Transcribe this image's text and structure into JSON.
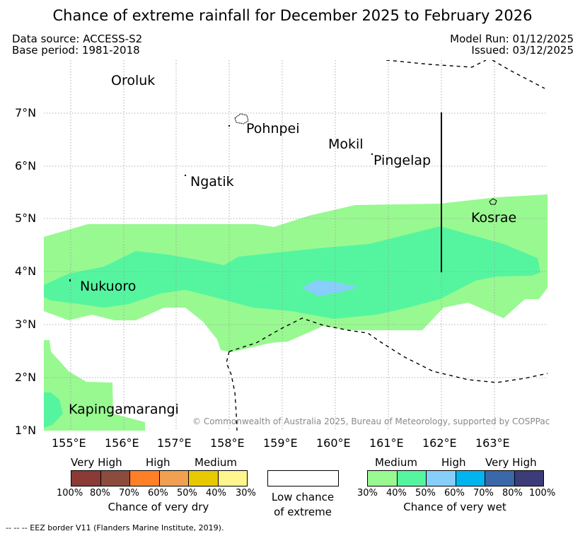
{
  "title": "Chance of extreme rainfall for December 2025 to February 2026",
  "meta": {
    "data_source": "Data source: ACCESS-S2",
    "base_period": "Base period: 1981-2018",
    "model_run": "Model Run: 01/12/2025",
    "issued": "Issued: 03/12/2025"
  },
  "axes": {
    "lon_ticks": [
      "155°E",
      "156°E",
      "157°E",
      "158°E",
      "159°E",
      "160°E",
      "161°E",
      "162°E",
      "163°E"
    ],
    "lat_ticks": [
      "7°N",
      "6°N",
      "5°N",
      "4°N",
      "3°N",
      "2°N",
      "1°N"
    ]
  },
  "places": {
    "oroluk": "Oroluk",
    "pohnpei": "Pohnpei",
    "mokil": "Mokil",
    "pingelap": "Pingelap",
    "ngatik": "Ngatik",
    "kosrae": "Kosrae",
    "nukuoro": "Nukuoro",
    "kapingamarangi": "Kapingamarangi"
  },
  "copyright": "© Commonwealth of Australia 2025, Bureau of Meteorology, supported by COSPPac",
  "legend": {
    "dry": {
      "categories": [
        "Very High",
        "High",
        "Medium"
      ],
      "colors": [
        "#8b3a35",
        "#8b4c3e",
        "#ff7f27",
        "#f0a050",
        "#e8c800",
        "#fff58f"
      ],
      "ticks": [
        "100%",
        "80%",
        "70%",
        "60%",
        "50%",
        "40%",
        "30%"
      ],
      "label": "Chance of very dry"
    },
    "low": {
      "label_line1": "Low chance",
      "label_line2": "of extreme"
    },
    "wet": {
      "categories": [
        "Medium",
        "High",
        "Very High"
      ],
      "colors": [
        "#98f990",
        "#55f5a0",
        "#87cefa",
        "#00b4f0",
        "#3a68a8",
        "#3c3c78"
      ],
      "ticks": [
        "30%",
        "40%",
        "50%",
        "60%",
        "70%",
        "80%",
        "100%"
      ],
      "label": "Chance of very wet"
    }
  },
  "eez_note": "--  --  -- EEZ border V11 (Flanders Marine Institute, 2019)."
}
